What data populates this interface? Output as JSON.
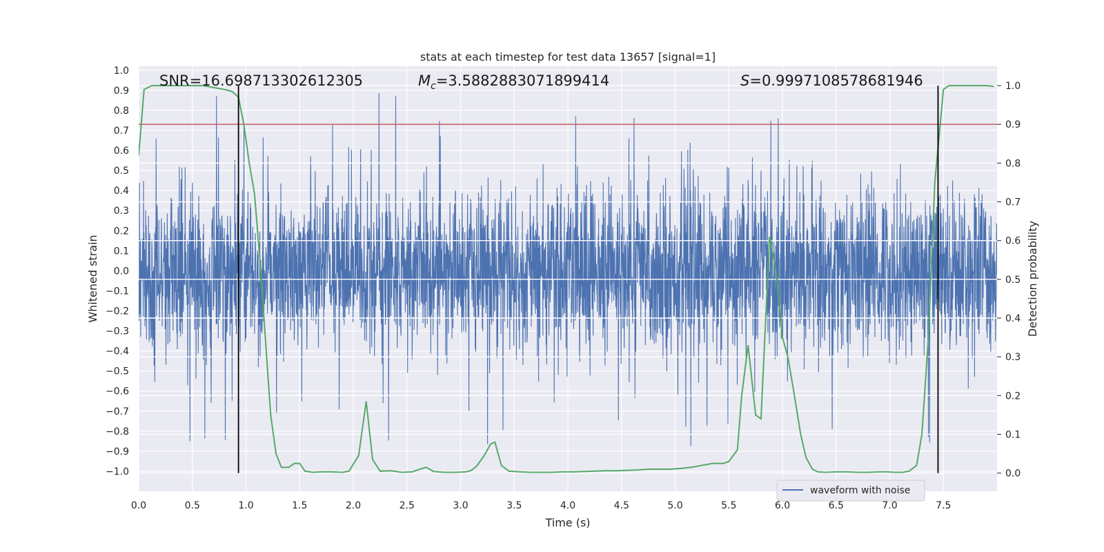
{
  "chart_data": {
    "type": "line",
    "title": "stats at each timestep for test data 13657 [signal=1]",
    "xlabel": "Time (s)",
    "ylabel": "Whitened strain",
    "y2label": "Detection probability",
    "xlim": [
      0.0,
      8.0
    ],
    "ylim": [
      -1.1,
      1.02
    ],
    "y2lim": [
      -0.047,
      1.05
    ],
    "x_ticks": [
      "0.0",
      "0.5",
      "1.0",
      "1.5",
      "2.0",
      "2.5",
      "3.0",
      "3.5",
      "4.0",
      "4.5",
      "5.0",
      "5.5",
      "6.0",
      "6.5",
      "7.0",
      "7.5"
    ],
    "y_ticks": [
      "1.0",
      "0.9",
      "0.8",
      "0.7",
      "0.6",
      "0.5",
      "0.4",
      "0.3",
      "0.2",
      "0.1",
      "0.0",
      "−0.1",
      "−0.2",
      "−0.3",
      "−0.4",
      "−0.5",
      "−0.6",
      "−0.7",
      "−0.8",
      "−0.9",
      "−1.0"
    ],
    "y2_ticks": [
      "1.0",
      "0.9",
      "0.8",
      "0.7",
      "0.6",
      "0.5",
      "0.4",
      "0.3",
      "0.2",
      "0.1",
      "0.0"
    ],
    "grid": true,
    "legend_position": "lower-right",
    "annotations": {
      "snr": "SNR=16.698713302612305",
      "mc_symbol": "M",
      "mc_sub": "c",
      "mc_value": "=3.5882883071899414",
      "s_symbol": "S",
      "s_value": "=0.9997108578681946"
    },
    "series": [
      {
        "name": "waveform with noise",
        "kind": "noise",
        "axis": "left",
        "color": "#4c72b0",
        "envelope": [
          0.4,
          -0.4
        ]
      },
      {
        "name": "detection probability",
        "axis": "right",
        "color": "#55a868",
        "x": [
          0.0,
          0.05,
          0.12,
          0.2,
          0.3,
          0.4,
          0.5,
          0.6,
          0.7,
          0.8,
          0.87,
          0.93,
          0.98,
          1.03,
          1.08,
          1.13,
          1.18,
          1.23,
          1.28,
          1.33,
          1.4,
          1.45,
          1.5,
          1.55,
          1.62,
          1.7,
          1.8,
          1.9,
          1.96,
          2.05,
          2.12,
          2.18,
          2.25,
          2.35,
          2.45,
          2.55,
          2.62,
          2.68,
          2.75,
          2.85,
          2.95,
          3.05,
          3.1,
          3.15,
          3.22,
          3.28,
          3.32,
          3.38,
          3.45,
          3.55,
          3.65,
          3.75,
          3.85,
          3.95,
          4.05,
          4.15,
          4.25,
          4.35,
          4.45,
          4.55,
          4.65,
          4.75,
          4.85,
          4.95,
          5.05,
          5.15,
          5.25,
          5.35,
          5.45,
          5.5,
          5.58,
          5.62,
          5.68,
          5.75,
          5.8,
          5.88,
          5.94,
          6.0,
          6.05,
          6.1,
          6.17,
          6.22,
          6.28,
          6.33,
          6.4,
          6.5,
          6.6,
          6.7,
          6.8,
          6.9,
          6.98,
          7.05,
          7.12,
          7.18,
          7.25,
          7.3,
          7.36,
          7.42,
          7.5,
          7.55,
          7.6,
          7.7,
          7.8,
          7.9,
          7.97
        ],
        "y": [
          0.82,
          0.99,
          1.0,
          1.0,
          1.0,
          1.0,
          1.0,
          1.0,
          0.995,
          0.99,
          0.985,
          0.97,
          0.9,
          0.8,
          0.72,
          0.55,
          0.35,
          0.15,
          0.05,
          0.015,
          0.015,
          0.025,
          0.025,
          0.005,
          0.002,
          0.003,
          0.003,
          0.002,
          0.005,
          0.045,
          0.185,
          0.035,
          0.005,
          0.006,
          0.002,
          0.003,
          0.01,
          0.015,
          0.004,
          0.002,
          0.002,
          0.003,
          0.007,
          0.018,
          0.045,
          0.075,
          0.08,
          0.02,
          0.005,
          0.003,
          0.002,
          0.002,
          0.002,
          0.003,
          0.003,
          0.004,
          0.005,
          0.006,
          0.006,
          0.007,
          0.008,
          0.01,
          0.01,
          0.01,
          0.012,
          0.015,
          0.02,
          0.025,
          0.025,
          0.03,
          0.06,
          0.2,
          0.33,
          0.15,
          0.14,
          0.61,
          0.52,
          0.35,
          0.3,
          0.22,
          0.1,
          0.04,
          0.01,
          0.003,
          0.002,
          0.003,
          0.003,
          0.002,
          0.002,
          0.003,
          0.003,
          0.002,
          0.002,
          0.005,
          0.02,
          0.1,
          0.35,
          0.75,
          0.99,
          1.0,
          1.0,
          1.0,
          1.0,
          1.0,
          0.998
        ]
      }
    ],
    "threshold": {
      "y2": 0.9,
      "color": "#c44e52"
    },
    "vlines": {
      "x": [
        0.93,
        7.45
      ],
      "color": "#000000"
    },
    "legend": {
      "label": "waveform with noise"
    }
  }
}
